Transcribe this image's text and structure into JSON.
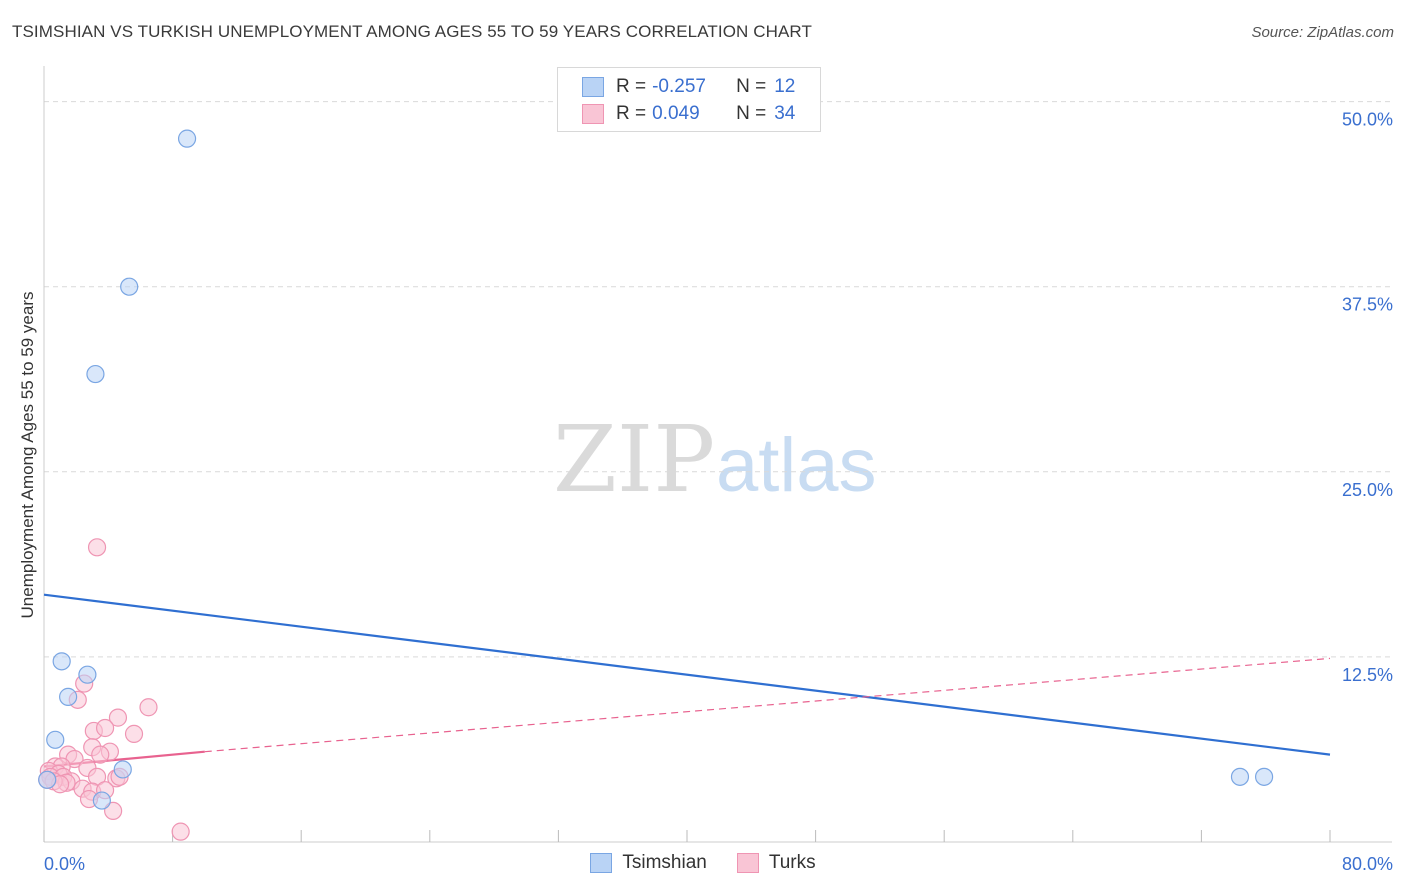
{
  "title": "TSIMSHIAN VS TURKISH UNEMPLOYMENT AMONG AGES 55 TO 59 YEARS CORRELATION CHART",
  "source": "Source: ZipAtlas.com",
  "watermark": {
    "zip": "ZIP",
    "atlas": "atlas"
  },
  "legend": {
    "r_label": "R =",
    "n_label": "N =",
    "rows": [
      {
        "name": "Tsimshian",
        "r": "-0.257",
        "n": "12",
        "fill": "#b9d3f5",
        "stroke": "#7aa6e3"
      },
      {
        "name": "Turks",
        "r": "0.049",
        "n": "34",
        "fill": "#f9c5d5",
        "stroke": "#ef95b3"
      }
    ]
  },
  "colors": {
    "blue_line": "#2f6fd1",
    "pink_line": "#e8628f",
    "grid": "#d9d9d9",
    "axis_text": "#3a6fcf"
  },
  "chart_data": {
    "type": "scatter",
    "title": "TSIMSHIAN VS TURKISH UNEMPLOYMENT AMONG AGES 55 TO 59 YEARS CORRELATION CHART",
    "xlabel": "",
    "ylabel": "Unemployment Among Ages 55 to 59 years",
    "xlim": [
      0,
      80
    ],
    "ylim": [
      0,
      52
    ],
    "x_tick_labels": [
      "0.0%",
      "80.0%"
    ],
    "y_ticks": [
      12.5,
      25.0,
      37.5,
      50.0
    ],
    "y_tick_labels": [
      "12.5%",
      "25.0%",
      "37.5%",
      "50.0%"
    ],
    "series": [
      {
        "name": "Tsimshian",
        "points": [
          [
            8.9,
            47.5
          ],
          [
            5.3,
            37.5
          ],
          [
            3.2,
            31.6
          ],
          [
            1.1,
            12.2
          ],
          [
            2.7,
            11.3
          ],
          [
            1.5,
            9.8
          ],
          [
            0.7,
            6.9
          ],
          [
            0.2,
            4.2
          ],
          [
            4.9,
            4.9
          ],
          [
            3.6,
            2.8
          ],
          [
            74.4,
            4.4
          ],
          [
            75.9,
            4.4
          ]
        ],
        "trend": {
          "x": [
            0,
            80
          ],
          "y": [
            16.7,
            5.9
          ],
          "style": "solid"
        }
      },
      {
        "name": "Turks",
        "points": [
          [
            3.3,
            19.9
          ],
          [
            2.5,
            10.7
          ],
          [
            2.1,
            9.6
          ],
          [
            6.5,
            9.1
          ],
          [
            4.6,
            8.4
          ],
          [
            3.1,
            7.5
          ],
          [
            5.6,
            7.3
          ],
          [
            3.8,
            7.7
          ],
          [
            3.0,
            6.4
          ],
          [
            4.1,
            6.1
          ],
          [
            3.5,
            5.9
          ],
          [
            1.5,
            5.9
          ],
          [
            1.9,
            5.6
          ],
          [
            0.7,
            5.1
          ],
          [
            1.1,
            5.1
          ],
          [
            2.7,
            5.0
          ],
          [
            0.3,
            4.8
          ],
          [
            0.9,
            4.6
          ],
          [
            0.4,
            4.4
          ],
          [
            1.2,
            4.4
          ],
          [
            3.3,
            4.4
          ],
          [
            4.5,
            4.3
          ],
          [
            1.7,
            4.1
          ],
          [
            1.4,
            4.0
          ],
          [
            0.6,
            4.1
          ],
          [
            1.0,
            3.9
          ],
          [
            2.4,
            3.6
          ],
          [
            3.0,
            3.4
          ],
          [
            3.8,
            3.5
          ],
          [
            2.8,
            2.9
          ],
          [
            4.3,
            2.1
          ],
          [
            8.5,
            0.7
          ],
          [
            4.7,
            4.4
          ],
          [
            0.2,
            4.2
          ]
        ],
        "trend_solid": {
          "x": [
            0,
            10
          ],
          "y": [
            5.1,
            6.1
          ]
        },
        "trend_dashed": {
          "x": [
            10,
            80
          ],
          "y": [
            6.1,
            12.4
          ]
        }
      }
    ]
  }
}
